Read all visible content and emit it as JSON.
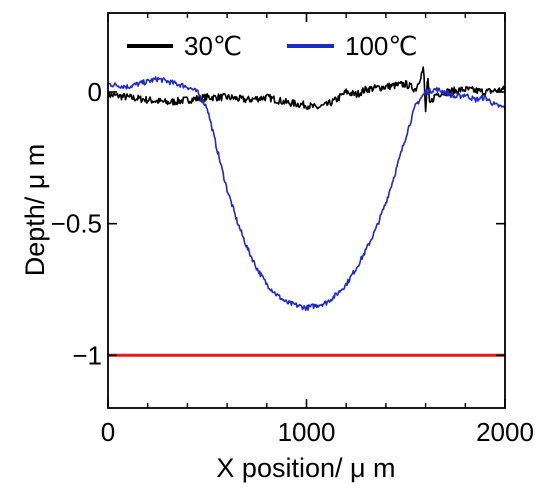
{
  "chart_data": {
    "type": "line",
    "xlabel": "X position/ μ m",
    "ylabel": "Depth/ μ m",
    "xlim": [
      0,
      2000
    ],
    "ylim": [
      -1.2,
      0.3
    ],
    "x_ticks": [
      0,
      1000,
      2000
    ],
    "x_tick_labels": [
      "0",
      "1000",
      "2000"
    ],
    "y_ticks": [
      0,
      -0.5,
      -1
    ],
    "y_tick_labels": [
      "0",
      "−0.5",
      "−1"
    ],
    "grid": false,
    "legend_position": "top",
    "series": [
      {
        "name": "30℃",
        "color": "#000000",
        "x": [
          0,
          100,
          200,
          300,
          400,
          500,
          600,
          700,
          800,
          900,
          1000,
          1050,
          1100,
          1150,
          1200,
          1250,
          1300,
          1400,
          1500,
          1550,
          1590,
          1600,
          1610,
          1620,
          1650,
          1700,
          1800,
          1900,
          2000
        ],
        "y": [
          -0.01,
          -0.02,
          -0.03,
          -0.04,
          -0.03,
          -0.02,
          -0.02,
          -0.03,
          -0.02,
          -0.04,
          -0.05,
          -0.06,
          -0.05,
          -0.03,
          0.0,
          -0.01,
          0.01,
          0.02,
          0.03,
          0.01,
          0.09,
          -0.08,
          0.06,
          -0.05,
          -0.01,
          0.0,
          0.01,
          0.0,
          0.01
        ]
      },
      {
        "name": "100℃",
        "color": "#1c2acb",
        "x": [
          0,
          100,
          200,
          250,
          300,
          350,
          400,
          450,
          500,
          550,
          600,
          650,
          700,
          750,
          800,
          850,
          900,
          950,
          1000,
          1050,
          1100,
          1150,
          1200,
          1250,
          1300,
          1350,
          1400,
          1450,
          1500,
          1550,
          1600,
          1650,
          1700,
          1750,
          1800,
          1850,
          1900,
          1950,
          2000
        ],
        "y": [
          0.03,
          0.02,
          0.04,
          0.05,
          0.04,
          0.03,
          0.02,
          0.0,
          -0.06,
          -0.22,
          -0.37,
          -0.49,
          -0.59,
          -0.67,
          -0.73,
          -0.77,
          -0.8,
          -0.81,
          -0.82,
          -0.81,
          -0.8,
          -0.77,
          -0.73,
          -0.67,
          -0.6,
          -0.52,
          -0.42,
          -0.3,
          -0.17,
          -0.05,
          0.0,
          0.01,
          0.0,
          -0.02,
          -0.01,
          -0.03,
          -0.02,
          -0.05,
          -0.06
        ]
      },
      {
        "name": "",
        "color": "#e41a1c",
        "x": [
          0,
          2000
        ],
        "y": [
          -1,
          -1
        ]
      }
    ]
  }
}
